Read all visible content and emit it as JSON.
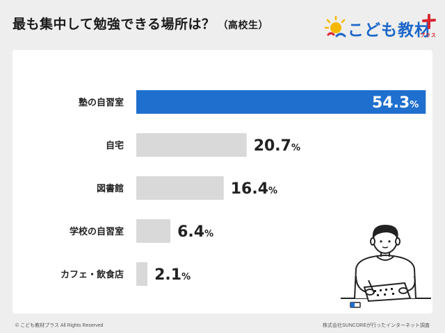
{
  "header": {
    "title": "最も集中して勉強できる場所は？",
    "subtitle": "（高校生）"
  },
  "logo": {
    "text": "こども教材",
    "plus_label": "プラス"
  },
  "footer": {
    "copyright": "© こども教材プラス All Rights Reserved",
    "source": "株式会社SUNCOREが行ったインターネット調査"
  },
  "colors": {
    "highlight_bar": "#1f6fce",
    "bar": "#d9d9d9",
    "label": "#222222"
  },
  "illustration": {
    "icon": "student-studying-icon"
  },
  "chart_data": {
    "type": "bar",
    "orientation": "horizontal",
    "unit": "%",
    "categories": [
      "塾の自習室",
      "自宅",
      "図書館",
      "学校の自習室",
      "カフェ・飲食店"
    ],
    "values": [
      54.3,
      20.7,
      16.4,
      6.4,
      2.1
    ],
    "highlight_index": 0,
    "xlim": [
      0,
      60
    ],
    "grid": false,
    "legend": "none"
  }
}
